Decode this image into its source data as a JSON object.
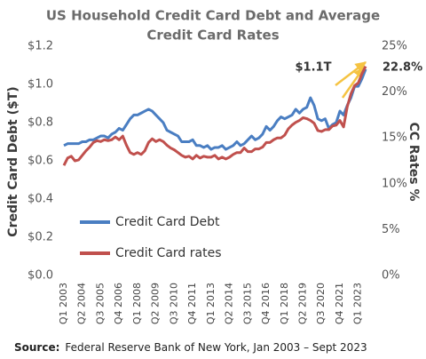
{
  "chart_data": {
    "type": "line",
    "title_lines": [
      "US Household Credit Card Debt and Average",
      "Credit Card Rates"
    ],
    "y_label": "Credit Card Debt ($T)",
    "y2_label": "CC Rates %",
    "categories": [
      "Q1 2003",
      null,
      null,
      null,
      null,
      "Q2 2004",
      null,
      null,
      null,
      null,
      "Q3 2005",
      null,
      null,
      null,
      null,
      "Q4 2006",
      null,
      null,
      null,
      null,
      "Q1 2008",
      null,
      null,
      null,
      null,
      "Q2 2009",
      null,
      null,
      null,
      null,
      "Q3 2010",
      null,
      null,
      null,
      null,
      "Q4 2011",
      null,
      null,
      null,
      null,
      "Q1 2013",
      null,
      null,
      null,
      null,
      "Q2 2014",
      null,
      null,
      null,
      null,
      "Q3 2015",
      null,
      null,
      null,
      null,
      "Q4 2016",
      null,
      null,
      null,
      null,
      "Q1 2018",
      null,
      null,
      null,
      null,
      "Q2 2019",
      null,
      null,
      null,
      null,
      "Q3 2020",
      null,
      null,
      null,
      null,
      "Q4 2021",
      null,
      null,
      null,
      null,
      "Q1 2023",
      null,
      null
    ],
    "series": [
      {
        "name": "Credit Card Debt",
        "color": "#4a7ec2",
        "values": [
          0.68,
          0.69,
          0.69,
          0.69,
          0.69,
          0.7,
          0.7,
          0.71,
          0.71,
          0.72,
          0.73,
          0.73,
          0.72,
          0.74,
          0.75,
          0.77,
          0.76,
          0.79,
          0.82,
          0.84,
          0.84,
          0.85,
          0.86,
          0.87,
          0.86,
          0.84,
          0.82,
          0.8,
          0.76,
          0.75,
          0.74,
          0.73,
          0.7,
          0.7,
          0.7,
          0.71,
          0.68,
          0.68,
          0.67,
          0.68,
          0.66,
          0.67,
          0.67,
          0.68,
          0.66,
          0.67,
          0.68,
          0.7,
          0.68,
          0.69,
          0.71,
          0.73,
          0.71,
          0.72,
          0.74,
          0.78,
          0.76,
          0.78,
          0.81,
          0.83,
          0.82,
          0.83,
          0.84,
          0.87,
          0.85,
          0.87,
          0.88,
          0.93,
          0.89,
          0.82,
          0.81,
          0.82,
          0.77,
          0.79,
          0.8,
          0.86,
          0.84,
          0.89,
          0.93,
          0.99,
          0.99,
          1.03,
          1.08
        ]
      },
      {
        "name": "Credit Card rates",
        "color": "#c0504d",
        "axis": "y2",
        "values": [
          12.0,
          12.8,
          13.0,
          12.5,
          12.6,
          13.1,
          13.6,
          14.0,
          14.5,
          14.7,
          14.6,
          14.8,
          14.7,
          14.8,
          15.1,
          14.8,
          15.2,
          14.2,
          13.4,
          13.2,
          13.4,
          13.2,
          13.6,
          14.5,
          14.9,
          14.6,
          14.8,
          14.6,
          14.2,
          13.9,
          13.7,
          13.4,
          13.1,
          12.9,
          13.0,
          12.7,
          13.1,
          12.8,
          13.0,
          12.9,
          12.9,
          13.1,
          12.7,
          12.9,
          12.7,
          12.9,
          13.2,
          13.4,
          13.4,
          13.9,
          13.5,
          13.5,
          13.8,
          13.8,
          14.0,
          14.5,
          14.5,
          14.8,
          15.0,
          15.0,
          15.3,
          16.0,
          16.4,
          16.7,
          16.9,
          17.2,
          17.1,
          16.9,
          16.6,
          15.8,
          15.7,
          15.9,
          15.9,
          16.3,
          16.4,
          16.9,
          16.2,
          18.4,
          19.8,
          20.7,
          21.0,
          22.0,
          22.8
        ]
      }
    ],
    "ylim": [
      0,
      1.2
    ],
    "yticks": [
      {
        "value": 0,
        "label": "$0.0"
      },
      {
        "value": 0.2,
        "label": "$0.2"
      },
      {
        "value": 0.4,
        "label": "$0.4"
      },
      {
        "value": 0.6,
        "label": "$0.6"
      },
      {
        "value": 0.8,
        "label": "$0.8"
      },
      {
        "value": 1.0,
        "label": "$1.0"
      },
      {
        "value": 1.2,
        "label": "$1.2"
      }
    ],
    "y2lim": [
      0,
      25
    ],
    "y2ticks": [
      {
        "value": 0,
        "label": "0%"
      },
      {
        "value": 5,
        "label": "5%"
      },
      {
        "value": 10,
        "label": "10%"
      },
      {
        "value": 15,
        "label": "15%"
      },
      {
        "value": 20,
        "label": "20%"
      },
      {
        "value": 25,
        "label": "25%"
      }
    ],
    "annotations": [
      "$1.1T",
      "22.8%"
    ],
    "source_label": "Source:",
    "source": "Federal Reserve Bank of New York,  Jan 2003 – Sept 2023"
  }
}
